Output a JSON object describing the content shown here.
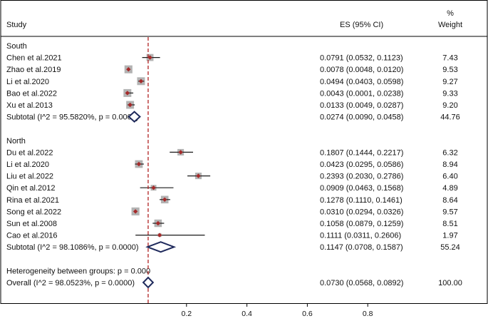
{
  "chart_data": {
    "type": "forest",
    "title": "",
    "header": {
      "study": "Study",
      "es": "ES (95% CI)",
      "weight_pct": "%",
      "weight": "Weight"
    },
    "reference_line": 0.073,
    "xticks": [
      "0.2",
      "0.4",
      "0.6",
      "0.8"
    ],
    "xlim": [
      0,
      1
    ],
    "groups": [
      {
        "name": "South",
        "studies": [
          {
            "study": "Chen et al.2021",
            "es": 0.0791,
            "lo": 0.0532,
            "hi": 0.1123,
            "es_text": "0.0791 (0.0532, 0.1123)",
            "weight": "7.43"
          },
          {
            "study": "Zhao et al.2019",
            "es": 0.0078,
            "lo": 0.0048,
            "hi": 0.012,
            "es_text": "0.0078 (0.0048, 0.0120)",
            "weight": "9.53"
          },
          {
            "study": "Li et al.2020",
            "es": 0.0494,
            "lo": 0.0403,
            "hi": 0.0598,
            "es_text": "0.0494 (0.0403, 0.0598)",
            "weight": "9.27"
          },
          {
            "study": "Bao et al.2022",
            "es": 0.0043,
            "lo": 0.0001,
            "hi": 0.0238,
            "es_text": "0.0043 (0.0001, 0.0238)",
            "weight": "9.33"
          },
          {
            "study": "Xu et al.2013",
            "es": 0.0133,
            "lo": 0.0049,
            "hi": 0.0287,
            "es_text": "0.0133 (0.0049, 0.0287)",
            "weight": "9.20"
          }
        ],
        "subtotal": {
          "label": "Subtotal  (I^2 = 95.5820%, p = 0.0000)",
          "es": 0.0274,
          "lo": 0.009,
          "hi": 0.0458,
          "es_text": "0.0274 (0.0090, 0.0458)",
          "weight": "44.76"
        }
      },
      {
        "name": "North",
        "studies": [
          {
            "study": "Du et al.2022",
            "es": 0.1807,
            "lo": 0.1444,
            "hi": 0.2217,
            "es_text": "0.1807 (0.1444, 0.2217)",
            "weight": "6.32"
          },
          {
            "study": "Li et al.2020",
            "es": 0.0423,
            "lo": 0.0295,
            "hi": 0.0586,
            "es_text": "0.0423 (0.0295, 0.0586)",
            "weight": "8.94"
          },
          {
            "study": "Liu et al.2022",
            "es": 0.2393,
            "lo": 0.203,
            "hi": 0.2786,
            "es_text": "0.2393 (0.2030, 0.2786)",
            "weight": "6.40"
          },
          {
            "study": "Qin et al.2012",
            "es": 0.0909,
            "lo": 0.0463,
            "hi": 0.1568,
            "es_text": "0.0909 (0.0463, 0.1568)",
            "weight": "4.89"
          },
          {
            "study": "Rina et al.2021",
            "es": 0.1278,
            "lo": 0.111,
            "hi": 0.1461,
            "es_text": "0.1278 (0.1110, 0.1461)",
            "weight": "8.64"
          },
          {
            "study": "Song et al.2022",
            "es": 0.031,
            "lo": 0.0294,
            "hi": 0.0326,
            "es_text": "0.0310 (0.0294, 0.0326)",
            "weight": "9.57"
          },
          {
            "study": "Sun et al.2008",
            "es": 0.1058,
            "lo": 0.0879,
            "hi": 0.1259,
            "es_text": "0.1058 (0.0879, 0.1259)",
            "weight": "8.51"
          },
          {
            "study": "Cao et al.2016",
            "es": 0.1111,
            "lo": 0.0311,
            "hi": 0.2606,
            "es_text": "0.1111 (0.0311, 0.2606)",
            "weight": "1.97"
          }
        ],
        "subtotal": {
          "label": "Subtotal  (I^2 = 98.1086%, p = 0.0000)",
          "es": 0.1147,
          "lo": 0.0708,
          "hi": 0.1587,
          "es_text": "0.1147 (0.0708, 0.1587)",
          "weight": "55.24"
        }
      }
    ],
    "heterogeneity": "Heterogeneity between groups: p = 0.000",
    "overall": {
      "label": "Overall  (I^2 = 98.0523%, p = 0.0000)",
      "es": 0.073,
      "lo": 0.0568,
      "hi": 0.0892,
      "es_text": "0.0730 (0.0568, 0.0892)",
      "weight": "100.00"
    },
    "colors": {
      "frame": "#000000",
      "ci_line": "#1a1a1a",
      "weight_box": "#b3b3b3",
      "point": "#a52a2a",
      "diamond": "#1f2a5c",
      "reference_line": "#b22222"
    }
  }
}
